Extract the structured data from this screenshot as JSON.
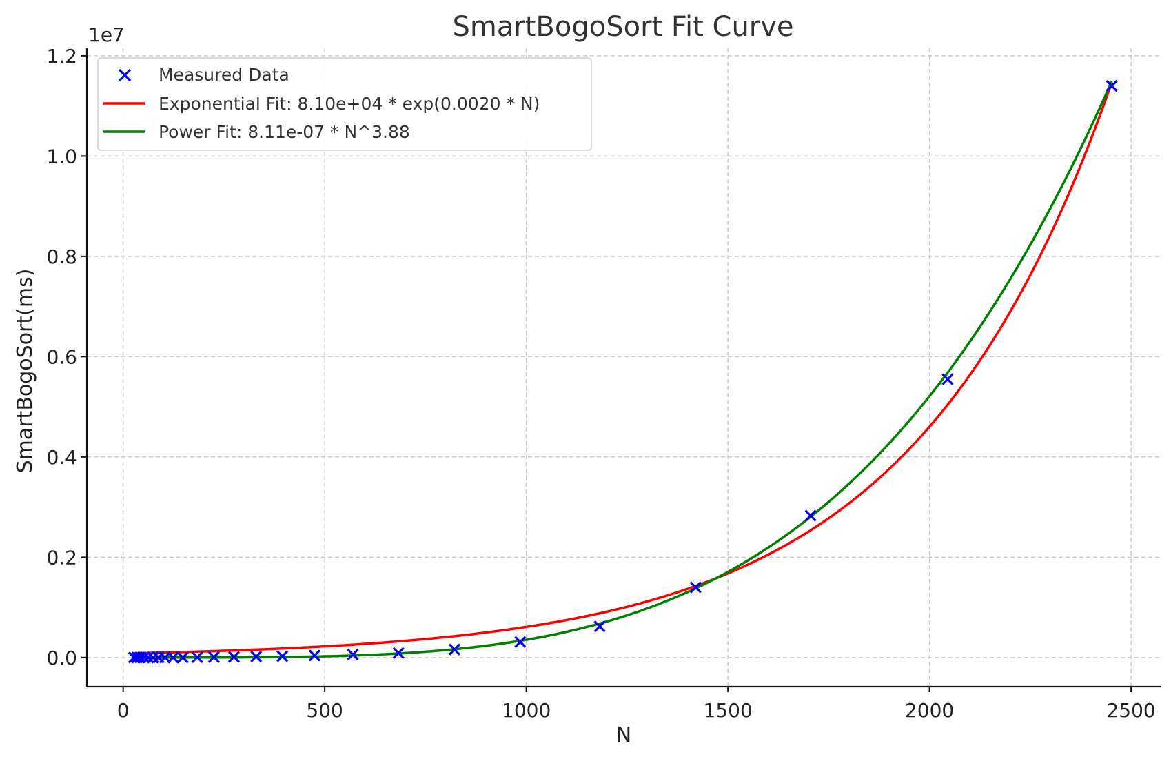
{
  "chart_data": {
    "type": "scatter",
    "title": "SmartBogoSort Fit Curve",
    "xlabel": "N",
    "ylabel": "SmartBogoSort(ms)",
    "y_offset_label": "1e7",
    "xlim": [
      -90,
      2575
    ],
    "ylim": [
      -580000,
      12150000
    ],
    "x_ticks": [
      0,
      500,
      1000,
      1500,
      2000,
      2500
    ],
    "x_tick_labels": [
      "0",
      "500",
      "1000",
      "1500",
      "2000",
      "2500"
    ],
    "y_ticks": [
      0,
      2000000,
      4000000,
      6000000,
      8000000,
      10000000,
      12000000
    ],
    "y_tick_labels": [
      "0.0",
      "0.2",
      "0.4",
      "0.6",
      "0.8",
      "1.0",
      "1.2"
    ],
    "grid": true,
    "legend_position": "top-left",
    "series": [
      {
        "name": "Measured Data",
        "kind": "scatter",
        "marker": "x",
        "color": "#0000ee",
        "x": [
          27,
          35,
          43,
          52,
          62,
          74,
          88,
          104,
          124,
          148,
          184,
          225,
          275,
          330,
          395,
          475,
          570,
          683,
          822,
          985,
          1182,
          1420,
          1705,
          2045,
          2452
        ],
        "y": [
          0,
          0,
          0,
          0,
          0,
          0,
          0,
          0,
          0,
          0,
          5000,
          8000,
          12000,
          18000,
          25000,
          40000,
          60000,
          90000,
          160000,
          310000,
          620000,
          1400000,
          2830000,
          5550000,
          11400000
        ]
      },
      {
        "name": "Exponential Fit: 8.10e+04 * exp(0.0020 * N)",
        "kind": "line",
        "color": "#ff0000",
        "model": "exponential",
        "a": 81000,
        "b": 0.00202,
        "x_range": [
          27,
          2452
        ]
      },
      {
        "name": "Power Fit: 8.11e-07 * N^3.88",
        "kind": "line",
        "color": "#008000",
        "model": "power",
        "a": 8.11e-07,
        "b": 3.88,
        "x_range": [
          27,
          2452
        ]
      }
    ]
  }
}
